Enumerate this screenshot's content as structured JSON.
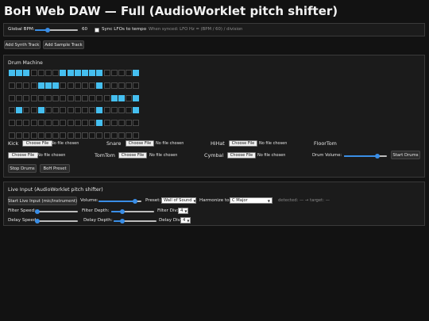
{
  "title": "BoH Web DAW — Full (AudioWorklet pitch shifter)",
  "global": {
    "bpm_label": "Global BPM:",
    "bpm_value": "60",
    "bpm_fraction": 0.3,
    "sync_label": "Sync LFOs to tempo",
    "sync_checked": false,
    "sync_hint": "When synced: LFO Hz = (BPM / 60) / division"
  },
  "track_buttons": {
    "add_synth": "Add Synth Track",
    "add_sample": "Add Sample Track"
  },
  "drum": {
    "heading": "Drum Machine",
    "grid": [
      [
        1,
        1,
        1,
        0,
        0,
        0,
        0,
        1,
        1,
        1,
        1,
        1,
        1,
        0,
        0,
        0,
        0,
        1
      ],
      [
        0,
        0,
        0,
        0,
        1,
        1,
        1,
        0,
        0,
        0,
        0,
        0,
        1,
        0,
        0,
        0,
        0,
        0
      ],
      [
        0,
        0,
        0,
        0,
        0,
        0,
        0,
        0,
        0,
        0,
        0,
        0,
        0,
        0,
        1,
        1,
        0,
        1
      ],
      [
        0,
        1,
        0,
        0,
        1,
        0,
        0,
        0,
        0,
        0,
        0,
        0,
        1,
        0,
        0,
        0,
        0,
        1
      ],
      [
        0,
        0,
        0,
        0,
        0,
        0,
        0,
        0,
        0,
        0,
        0,
        0,
        1,
        0,
        0,
        0,
        0,
        0
      ],
      [
        0,
        0,
        0,
        0,
        0,
        0,
        0,
        0,
        0,
        0,
        0,
        0,
        0,
        0,
        0,
        0,
        0,
        0
      ]
    ],
    "choose_label": "Choose File",
    "no_file_label": "No file chosen",
    "pads_row1": [
      "Kick",
      "Snare",
      "HiHat",
      "FloorTom"
    ],
    "pads_row2": [
      "TomTom",
      "Cymbal"
    ],
    "volume_label": "Drum Volume:",
    "volume_fraction": 0.78,
    "start_label": "Start Drums",
    "stop_label": "Stop Drums",
    "preset_label": "BoH Preset"
  },
  "live": {
    "heading": "Live Input (AudioWorklet pitch shifter)",
    "start_label": "Start Live Input (mic/instrument)",
    "volume_label": "Volume:",
    "volume_fraction": 0.85,
    "preset_label": "Preset:",
    "preset_value": "Wall of Sound",
    "harmonize_label": "Harmonize to:",
    "harmonize_value": "C Major",
    "detected_text": "detected: — → target: —",
    "filter_speed_label": "Filter Speed:",
    "filter_speed_fraction": 0.05,
    "filter_depth_label": "Filter Depth:",
    "filter_depth_fraction": 0.25,
    "filter_div_label": "Filter Div:",
    "filter_div_value": "4",
    "delay_speed_label": "Delay Speed:",
    "delay_speed_fraction": 0.05,
    "delay_depth_label": "Delay Depth:",
    "delay_depth_fraction": 0.2,
    "delay_div_label": "Delay Div:",
    "delay_div_value": "4"
  },
  "colors": {
    "accent": "#3a8ee6",
    "step_on": "#45bff0",
    "background": "#121212"
  }
}
